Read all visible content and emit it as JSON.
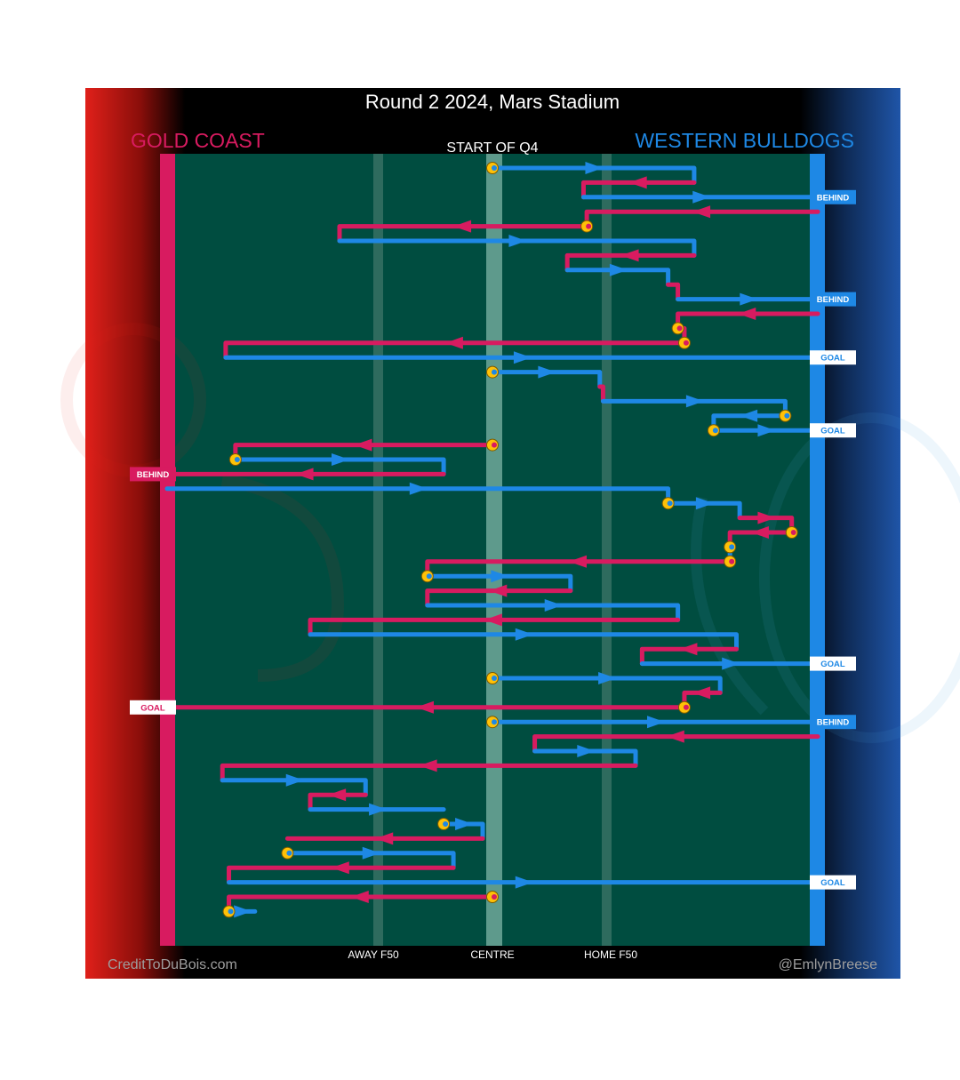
{
  "title": "Round 2 2024, Mars Stadium",
  "period_label": "START OF Q4",
  "teams": {
    "left": {
      "name": "GOLD COAST",
      "color": "#D81B60"
    },
    "right": {
      "name": "WESTERN BULLDOGS",
      "color": "#1E88E5"
    }
  },
  "colors": {
    "field": "#004D40",
    "turnover_marker": "#FFC107",
    "left_panel": "#E0201A",
    "right_panel": "#1F55A8"
  },
  "zone_labels": {
    "away": "AWAY F50",
    "centre": "CENTRE",
    "home": "HOME F50"
  },
  "credits": {
    "left": "CreditToDuBois.com",
    "right": "@EmlynBreese"
  },
  "chart_data": {
    "type": "line",
    "title": "Round 2 2024, Mars Stadium",
    "x_axis": {
      "range": [
        -1,
        1
      ],
      "labels": [
        {
          "x": -0.36,
          "text": "AWAY F50"
        },
        {
          "x": 0.0,
          "text": "CENTRE"
        },
        {
          "x": 0.36,
          "text": "HOME F50"
        }
      ]
    },
    "y_axis": {
      "range": [
        0,
        53
      ],
      "description": "chain index (top to bottom)"
    },
    "chains": [
      {
        "y": 1,
        "team": "right",
        "path": [
          [
            0,
            1
          ],
          [
            0.62,
            1
          ],
          [
            0.62,
            2
          ]
        ],
        "start": "turnover"
      },
      {
        "y": 2,
        "team": "left",
        "path": [
          [
            0.62,
            2
          ],
          [
            0.28,
            2
          ],
          [
            0.28,
            3
          ]
        ]
      },
      {
        "y": 3,
        "team": "right",
        "path": [
          [
            0.28,
            3
          ],
          [
            1,
            3
          ]
        ],
        "result": "BEHIND"
      },
      {
        "y": 4,
        "team": "left",
        "path": [
          [
            1,
            4
          ],
          [
            0.29,
            4
          ],
          [
            0.29,
            5
          ]
        ]
      },
      {
        "y": 5,
        "team": "left",
        "path": [
          [
            0.29,
            5
          ],
          [
            -0.47,
            5
          ],
          [
            -0.47,
            6
          ]
        ],
        "start": "turnover"
      },
      {
        "y": 6,
        "team": "right",
        "path": [
          [
            -0.47,
            6
          ],
          [
            0.62,
            6
          ],
          [
            0.62,
            7
          ]
        ]
      },
      {
        "y": 7,
        "team": "left",
        "path": [
          [
            0.62,
            7
          ],
          [
            0.23,
            7
          ],
          [
            0.23,
            8
          ]
        ]
      },
      {
        "y": 8,
        "team": "right",
        "path": [
          [
            0.23,
            8
          ],
          [
            0.54,
            8
          ],
          [
            0.54,
            9
          ]
        ]
      },
      {
        "y": 9,
        "team": "left",
        "path": [
          [
            0.54,
            9
          ],
          [
            0.57,
            9
          ],
          [
            0.57,
            10
          ]
        ]
      },
      {
        "y": 10,
        "team": "right",
        "path": [
          [
            0.57,
            10
          ],
          [
            1,
            10
          ]
        ],
        "result": "BEHIND"
      },
      {
        "y": 11,
        "team": "left",
        "path": [
          [
            1,
            11
          ],
          [
            0.57,
            11
          ],
          [
            0.57,
            12
          ]
        ]
      },
      {
        "y": 12,
        "team": "left",
        "path": [
          [
            0.57,
            12
          ],
          [
            0.59,
            12
          ],
          [
            0.59,
            13
          ]
        ],
        "start": "turnover"
      },
      {
        "y": 13,
        "team": "left",
        "path": [
          [
            0.59,
            13
          ],
          [
            -0.82,
            13
          ],
          [
            -0.82,
            14
          ]
        ],
        "start": "turnover"
      },
      {
        "y": 14,
        "team": "right",
        "path": [
          [
            -0.82,
            14
          ],
          [
            1,
            14
          ]
        ],
        "result": "GOAL"
      },
      {
        "y": 15,
        "team": "right",
        "path": [
          [
            0,
            15
          ],
          [
            0.33,
            15
          ],
          [
            0.33,
            16
          ]
        ],
        "start": "turnover"
      },
      {
        "y": 16,
        "team": "left",
        "path": [
          [
            0.33,
            16
          ],
          [
            0.34,
            16
          ],
          [
            0.34,
            17
          ]
        ]
      },
      {
        "y": 17,
        "team": "right",
        "path": [
          [
            0.34,
            17
          ],
          [
            0.9,
            17
          ],
          [
            0.9,
            18
          ]
        ]
      },
      {
        "y": 18,
        "team": "right",
        "path": [
          [
            0.9,
            18
          ],
          [
            0.68,
            18
          ],
          [
            0.68,
            19
          ]
        ],
        "start": "turnover"
      },
      {
        "y": 19,
        "team": "right",
        "path": [
          [
            0.68,
            19
          ],
          [
            1,
            19
          ]
        ],
        "start": "turnover",
        "result": "GOAL"
      },
      {
        "y": 20,
        "team": "left",
        "path": [
          [
            0,
            20
          ],
          [
            -0.79,
            20
          ],
          [
            -0.79,
            21
          ]
        ],
        "start": "turnover"
      },
      {
        "y": 21,
        "team": "right",
        "path": [
          [
            -0.79,
            21
          ],
          [
            -0.15,
            21
          ],
          [
            -0.15,
            22
          ]
        ],
        "start": "turnover"
      },
      {
        "y": 22,
        "team": "left",
        "path": [
          [
            -0.15,
            22
          ],
          [
            -1,
            22
          ]
        ],
        "result": "BEHIND"
      },
      {
        "y": 23,
        "team": "right",
        "path": [
          [
            -1,
            23
          ],
          [
            0.54,
            23
          ],
          [
            0.54,
            24
          ]
        ]
      },
      {
        "y": 24,
        "team": "right",
        "path": [
          [
            0.54,
            24
          ],
          [
            0.76,
            24
          ],
          [
            0.76,
            25
          ]
        ],
        "start": "turnover"
      },
      {
        "y": 25,
        "team": "left",
        "path": [
          [
            0.76,
            25
          ],
          [
            0.92,
            25
          ],
          [
            0.92,
            26
          ]
        ]
      },
      {
        "y": 26,
        "team": "left",
        "path": [
          [
            0.92,
            26
          ],
          [
            0.73,
            26
          ],
          [
            0.73,
            27
          ]
        ],
        "start": "turnover"
      },
      {
        "y": 27,
        "team": "right",
        "path": [
          [
            0.73,
            27
          ],
          [
            0.73,
            28
          ]
        ],
        "start": "turnover"
      },
      {
        "y": 28,
        "team": "left",
        "path": [
          [
            0.73,
            28
          ],
          [
            -0.2,
            28
          ],
          [
            -0.2,
            29
          ]
        ],
        "start": "turnover"
      },
      {
        "y": 29,
        "team": "right",
        "path": [
          [
            -0.2,
            29
          ],
          [
            0.24,
            29
          ],
          [
            0.24,
            30
          ]
        ],
        "start": "turnover"
      },
      {
        "y": 30,
        "team": "left",
        "path": [
          [
            0.24,
            30
          ],
          [
            -0.2,
            30
          ],
          [
            -0.2,
            31
          ]
        ]
      },
      {
        "y": 31,
        "team": "right",
        "path": [
          [
            -0.2,
            31
          ],
          [
            0.57,
            31
          ],
          [
            0.57,
            32
          ]
        ]
      },
      {
        "y": 32,
        "team": "left",
        "path": [
          [
            0.57,
            32
          ],
          [
            -0.56,
            32
          ],
          [
            -0.56,
            33
          ]
        ]
      },
      {
        "y": 33,
        "team": "right",
        "path": [
          [
            -0.56,
            33
          ],
          [
            0.75,
            33
          ],
          [
            0.75,
            34
          ]
        ]
      },
      {
        "y": 34,
        "team": "left",
        "path": [
          [
            0.75,
            34
          ],
          [
            0.46,
            34
          ],
          [
            0.46,
            35
          ]
        ]
      },
      {
        "y": 35,
        "team": "right",
        "path": [
          [
            0.46,
            35
          ],
          [
            1,
            35
          ]
        ],
        "result": "GOAL"
      },
      {
        "y": 36,
        "team": "right",
        "path": [
          [
            0,
            36
          ],
          [
            0.7,
            36
          ],
          [
            0.7,
            37
          ]
        ],
        "start": "turnover"
      },
      {
        "y": 37,
        "team": "left",
        "path": [
          [
            0.7,
            37
          ],
          [
            0.59,
            37
          ],
          [
            0.59,
            38
          ]
        ]
      },
      {
        "y": 38,
        "team": "left",
        "path": [
          [
            0.59,
            38
          ],
          [
            -1,
            38
          ]
        ],
        "start": "turnover",
        "result": "GOAL"
      },
      {
        "y": 39,
        "team": "right",
        "path": [
          [
            0,
            39
          ],
          [
            1,
            39
          ]
        ],
        "start": "turnover",
        "result": "BEHIND"
      },
      {
        "y": 40,
        "team": "left",
        "path": [
          [
            1,
            40
          ],
          [
            0.13,
            40
          ],
          [
            0.13,
            41
          ]
        ]
      },
      {
        "y": 41,
        "team": "right",
        "path": [
          [
            0.13,
            41
          ],
          [
            0.44,
            41
          ],
          [
            0.44,
            42
          ]
        ]
      },
      {
        "y": 42,
        "team": "left",
        "path": [
          [
            0.44,
            42
          ],
          [
            -0.83,
            42
          ],
          [
            -0.83,
            43
          ]
        ]
      },
      {
        "y": 43,
        "team": "right",
        "path": [
          [
            -0.83,
            43
          ],
          [
            -0.39,
            43
          ],
          [
            -0.39,
            44
          ]
        ]
      },
      {
        "y": 44,
        "team": "left",
        "path": [
          [
            -0.39,
            44
          ],
          [
            -0.56,
            44
          ],
          [
            -0.56,
            45
          ]
        ]
      },
      {
        "y": 45,
        "team": "right",
        "path": [
          [
            -0.56,
            45
          ],
          [
            -0.15,
            45
          ]
        ]
      },
      {
        "y": 46,
        "team": "right",
        "path": [
          [
            -0.15,
            46
          ],
          [
            -0.03,
            46
          ],
          [
            -0.03,
            47
          ]
        ],
        "start": "turnover"
      },
      {
        "y": 47,
        "team": "left",
        "path": [
          [
            -0.03,
            47
          ],
          [
            -0.63,
            47
          ]
        ]
      },
      {
        "y": 48,
        "team": "right",
        "path": [
          [
            -0.63,
            48
          ],
          [
            -0.12,
            48
          ],
          [
            -0.12,
            49
          ]
        ],
        "start": "turnover"
      },
      {
        "y": 49,
        "team": "left",
        "path": [
          [
            -0.12,
            49
          ],
          [
            -0.81,
            49
          ],
          [
            -0.81,
            50
          ]
        ]
      },
      {
        "y": 50,
        "team": "right",
        "path": [
          [
            -0.81,
            50
          ],
          [
            1,
            50
          ]
        ],
        "result": "GOAL"
      },
      {
        "y": 51,
        "team": "left",
        "path": [
          [
            0,
            51
          ],
          [
            -0.81,
            51
          ],
          [
            -0.81,
            52
          ]
        ],
        "start": "turnover"
      },
      {
        "y": 52,
        "team": "right",
        "path": [
          [
            -0.81,
            52
          ],
          [
            -0.73,
            52
          ]
        ],
        "start": "turnover"
      }
    ]
  }
}
